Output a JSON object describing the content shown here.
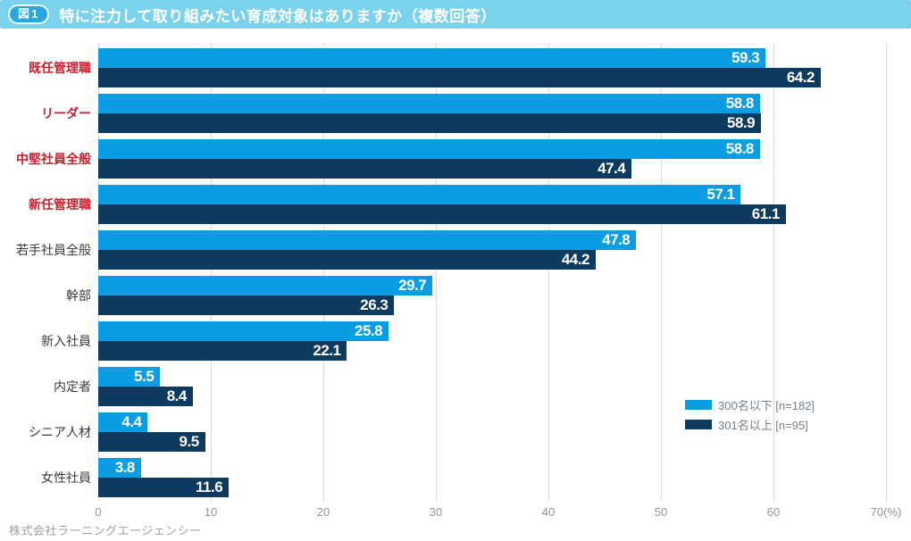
{
  "header": {
    "badge": "図1",
    "title": "特に注力して取り組みたい育成対象はありますか（複数回答）"
  },
  "colors": {
    "header_bg": "#7bd2ec",
    "badge_bg": "#2aa6dd",
    "series_small_company": "#0a9de2",
    "series_large_company": "#0e3a60",
    "emphasized_label": "#c9202e",
    "normal_label": "#3a3a3a",
    "gridline": "#dcdcdc",
    "axis_text": "#949494",
    "legend_text": "#76818b",
    "footer_text": "#a0a0a0"
  },
  "chart_data": {
    "type": "bar",
    "orientation": "horizontal",
    "title": "特に注力して取り組みたい育成対象はありますか（複数回答）",
    "categories": [
      "既任管理職",
      "リーダー",
      "中堅社員全般",
      "新任管理職",
      "若手社員全般",
      "幹部",
      "新入社員",
      "内定者",
      "シニア人材",
      "女性社員"
    ],
    "category_emphasis": [
      true,
      true,
      true,
      true,
      false,
      false,
      false,
      false,
      false,
      false
    ],
    "series": [
      {
        "name": "300名以下 [n=182]",
        "values": [
          59.3,
          58.8,
          58.8,
          57.1,
          47.8,
          29.7,
          25.8,
          5.5,
          4.4,
          3.8
        ]
      },
      {
        "name": "301名以上 [n=95]",
        "values": [
          64.2,
          58.9,
          47.4,
          61.1,
          44.2,
          26.3,
          22.1,
          8.4,
          9.5,
          11.6
        ]
      }
    ],
    "xlabel": "(%)",
    "ylabel": "",
    "xlim": [
      0,
      70
    ],
    "tick_values": [
      0,
      10,
      20,
      30,
      40,
      50,
      60,
      70
    ],
    "x_tick_labels": [
      "0",
      "10",
      "20",
      "30",
      "40",
      "50",
      "60",
      "70(%)"
    ],
    "grid": true,
    "legend_position": "right-bottom",
    "value_labels": "inside-end, white bold"
  },
  "legend": {
    "items": [
      {
        "label": "300名以下 [n=182]"
      },
      {
        "label": "301名以上 [n=95]"
      }
    ]
  },
  "footer": {
    "source": "株式会社ラーニングエージェンシー"
  }
}
